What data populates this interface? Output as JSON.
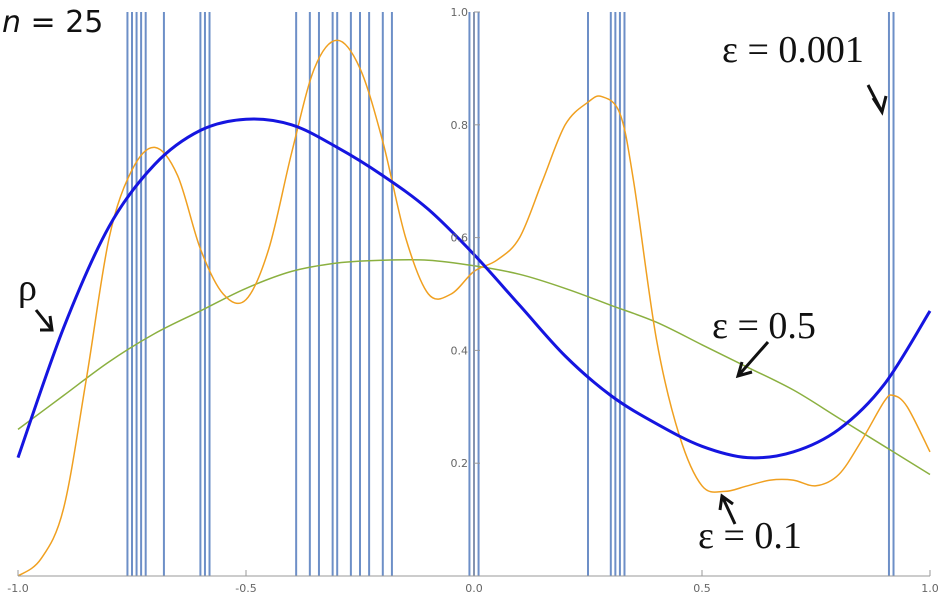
{
  "chart_data": {
    "type": "line",
    "title": "n = 25",
    "title_parts": {
      "var": "n",
      "rest": " = 25"
    },
    "xlabel": "",
    "ylabel": "",
    "xlim": [
      -1.0,
      1.0
    ],
    "ylim": [
      0.0,
      1.0
    ],
    "x_ticks": [
      "-1.0",
      "-0.5",
      "0.0",
      "0.5",
      "1.0"
    ],
    "y_ticks": [
      "0.2",
      "0.4",
      "0.6",
      "0.8",
      "1.0"
    ],
    "grid": false,
    "axis_style": "axes through origin",
    "series": [
      {
        "name": "ρ",
        "color": "#1515e0",
        "x": [
          -1.0,
          -0.9,
          -0.8,
          -0.7,
          -0.6,
          -0.5,
          -0.4,
          -0.3,
          -0.2,
          -0.1,
          0.0,
          0.1,
          0.2,
          0.3,
          0.4,
          0.5,
          0.6,
          0.7,
          0.8,
          0.9,
          1.0
        ],
        "y": [
          0.21,
          0.44,
          0.62,
          0.73,
          0.79,
          0.81,
          0.8,
          0.76,
          0.71,
          0.65,
          0.57,
          0.48,
          0.39,
          0.32,
          0.27,
          0.23,
          0.21,
          0.22,
          0.26,
          0.34,
          0.47
        ]
      },
      {
        "name": "ε = 0.5",
        "color": "#8bb040",
        "x": [
          -1.0,
          -0.9,
          -0.8,
          -0.7,
          -0.6,
          -0.5,
          -0.4,
          -0.3,
          -0.2,
          -0.1,
          0.0,
          0.1,
          0.2,
          0.3,
          0.4,
          0.5,
          0.6,
          0.7,
          0.8,
          0.9,
          1.0
        ],
        "y": [
          0.26,
          0.32,
          0.38,
          0.43,
          0.47,
          0.51,
          0.54,
          0.555,
          0.56,
          0.56,
          0.55,
          0.535,
          0.51,
          0.48,
          0.45,
          0.41,
          0.37,
          0.33,
          0.28,
          0.23,
          0.18
        ]
      },
      {
        "name": "ε = 0.1",
        "color": "#f0a020",
        "x": [
          -1.0,
          -0.95,
          -0.9,
          -0.85,
          -0.8,
          -0.75,
          -0.7,
          -0.65,
          -0.6,
          -0.55,
          -0.5,
          -0.45,
          -0.4,
          -0.35,
          -0.3,
          -0.25,
          -0.2,
          -0.15,
          -0.1,
          -0.05,
          0.0,
          0.05,
          0.1,
          0.15,
          0.2,
          0.25,
          0.28,
          0.32,
          0.35,
          0.4,
          0.45,
          0.5,
          0.55,
          0.6,
          0.65,
          0.7,
          0.75,
          0.8,
          0.85,
          0.9,
          0.92,
          0.95,
          1.0
        ],
        "y": [
          0.0,
          0.03,
          0.12,
          0.35,
          0.6,
          0.72,
          0.76,
          0.71,
          0.58,
          0.5,
          0.49,
          0.58,
          0.75,
          0.9,
          0.95,
          0.9,
          0.77,
          0.6,
          0.5,
          0.5,
          0.54,
          0.56,
          0.6,
          0.7,
          0.8,
          0.84,
          0.85,
          0.82,
          0.7,
          0.42,
          0.25,
          0.16,
          0.15,
          0.16,
          0.17,
          0.17,
          0.16,
          0.18,
          0.24,
          0.31,
          0.32,
          0.3,
          0.22
        ]
      }
    ],
    "spikes": {
      "name": "ε = 0.001",
      "color": "#6d8fc7",
      "x": [
        -0.76,
        -0.75,
        -0.74,
        -0.73,
        -0.72,
        -0.68,
        -0.6,
        -0.59,
        -0.58,
        -0.39,
        -0.36,
        -0.34,
        -0.31,
        -0.3,
        -0.27,
        -0.25,
        -0.23,
        -0.2,
        -0.18,
        -0.01,
        0.0,
        0.01,
        0.25,
        0.3,
        0.31,
        0.32,
        0.33,
        0.91,
        0.92
      ]
    },
    "annotations": [
      {
        "text": "ε = 0.001",
        "target_series": "ε = 0.001"
      },
      {
        "text": "ρ",
        "target_series": "ρ"
      },
      {
        "text": "ε = 0.5",
        "target_series": "ε = 0.5"
      },
      {
        "text": "ε = 0.1",
        "target_series": "ε = 0.1"
      }
    ]
  }
}
